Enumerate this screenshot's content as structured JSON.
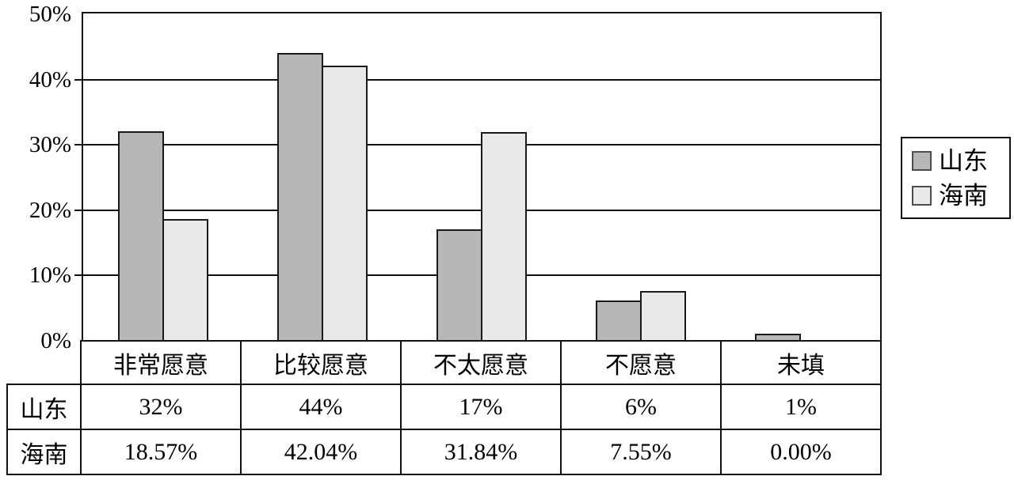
{
  "chart_data": {
    "type": "bar",
    "categories": [
      "非常愿意",
      "比较愿意",
      "不太愿意",
      "不愿意",
      "未填"
    ],
    "series": [
      {
        "name": "山东",
        "values": [
          32,
          44,
          17,
          6,
          1
        ],
        "color": "#b7b7b7"
      },
      {
        "name": "海南",
        "values": [
          18.57,
          42.04,
          31.84,
          7.55,
          0
        ],
        "color": "#e9e9e9"
      }
    ],
    "title": "",
    "xlabel": "",
    "ylabel": "",
    "ylim": [
      0,
      50
    ],
    "yticks": [
      0,
      10,
      20,
      30,
      40,
      50
    ],
    "ytick_labels": [
      "0%",
      "10%",
      "20%",
      "30%",
      "40%",
      "50%"
    ],
    "grid": true,
    "legend_position": "right"
  },
  "legend": {
    "items": [
      {
        "label": "山东",
        "color": "#b7b7b7"
      },
      {
        "label": "海南",
        "color": "#e9e9e9"
      }
    ]
  },
  "table": {
    "header_cells": [
      "非常愿意",
      "比较愿意",
      "不太愿意",
      "不愿意",
      "未填"
    ],
    "rows": [
      {
        "label": "山东",
        "cells": [
          "32%",
          "44%",
          "17%",
          "6%",
          "1%"
        ]
      },
      {
        "label": "海南",
        "cells": [
          "18.57%",
          "42.04%",
          "31.84%",
          "7.55%",
          "0.00%"
        ]
      }
    ]
  },
  "colors": {
    "line": "#111111",
    "series_shandong": "#b7b7b7",
    "series_hainan": "#e9e9e9",
    "background": "#ffffff"
  }
}
